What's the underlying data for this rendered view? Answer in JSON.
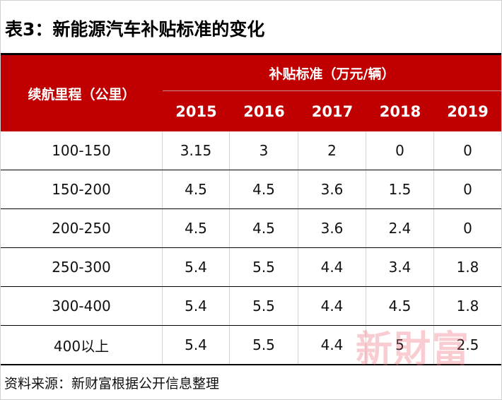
{
  "title": "表3：新能源汽车补贴标准的变化",
  "table": {
    "range_header": "续航里程（公里）",
    "group_header": "补贴标准（万元/辆）",
    "years": [
      "2015",
      "2016",
      "2017",
      "2018",
      "2019"
    ],
    "rows": [
      {
        "range": "100-150",
        "values": [
          "3.15",
          "3",
          "2",
          "0",
          "0"
        ]
      },
      {
        "range": "150-200",
        "values": [
          "4.5",
          "4.5",
          "3.6",
          "1.5",
          "0"
        ]
      },
      {
        "range": "200-250",
        "values": [
          "4.5",
          "4.5",
          "3.6",
          "2.4",
          "0"
        ]
      },
      {
        "range": "250-300",
        "values": [
          "5.4",
          "5.5",
          "4.4",
          "3.4",
          "1.8"
        ]
      },
      {
        "range": "300-400",
        "values": [
          "5.4",
          "5.5",
          "4.4",
          "4.5",
          "1.8"
        ]
      },
      {
        "range": "400以上",
        "values": [
          "5.4",
          "5.5",
          "4.4",
          "5",
          "2.5"
        ]
      }
    ]
  },
  "watermark": "新財富",
  "source": "资料来源：新财富根据公开信息整理",
  "colors": {
    "header_bg": "#c00000",
    "header_text": "#ffffff",
    "watermark": "#eb6e78"
  }
}
